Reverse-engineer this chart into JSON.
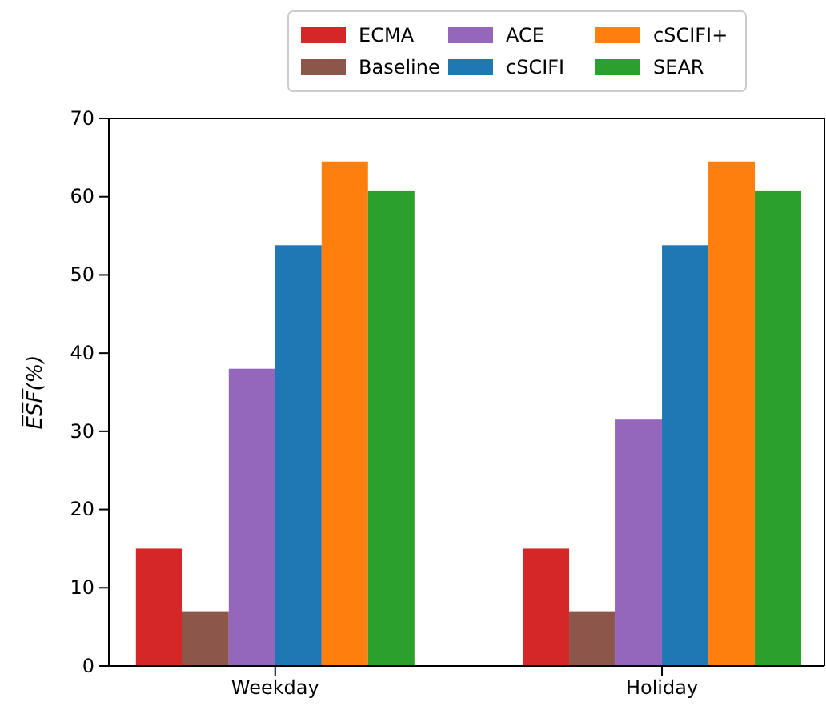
{
  "chart_data": {
    "type": "bar",
    "ylabel": "E̅S̅F̅(%)",
    "categories": [
      "Weekday",
      "Holiday"
    ],
    "series": [
      {
        "name": "ECMA",
        "color": "#d62728",
        "values": [
          15,
          15
        ]
      },
      {
        "name": "Baseline",
        "color": "#8c564b",
        "values": [
          7,
          7
        ]
      },
      {
        "name": "ACE",
        "color": "#9467bd",
        "values": [
          38,
          31.5
        ]
      },
      {
        "name": "cSCIFI",
        "color": "#1f77b4",
        "values": [
          53.8,
          53.8
        ]
      },
      {
        "name": "cSCIFI+",
        "color": "#ff7f0e",
        "values": [
          64.5,
          64.5
        ]
      },
      {
        "name": "SEAR",
        "color": "#2ca02c",
        "values": [
          60.8,
          60.8
        ]
      }
    ],
    "ylim": [
      0,
      70
    ],
    "yticks": [
      0,
      10,
      20,
      30,
      40,
      50,
      60,
      70
    ],
    "legend": "top"
  }
}
